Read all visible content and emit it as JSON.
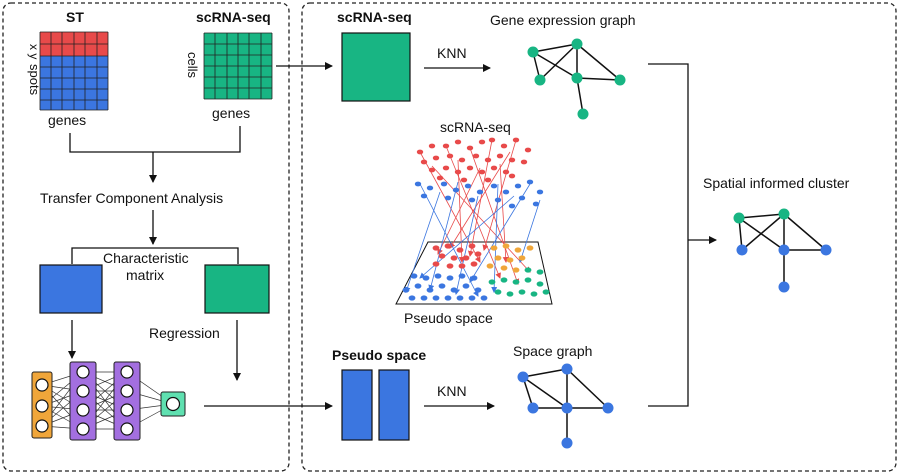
{
  "labels": {
    "st_title": "ST",
    "scrna_title_left": "scRNA-seq",
    "xy_label": "x y",
    "spots_label": "spots",
    "cells_label": "cells",
    "genes_left": "genes",
    "genes_right": "genes",
    "tca": "Transfer Component Analysis",
    "char_line1": "Characteristic",
    "char_line2": "matrix",
    "regression": "Regression",
    "scrna_title_right": "scRNA-seq",
    "gene_expr_graph": "Gene expression graph",
    "knn_top": "KNN",
    "scrna_mid": "scRNA-seq",
    "pseudo_space_small": "Pseudo space",
    "spatial_cluster": "Spatial informed cluster",
    "pseudo_space_bold": "Pseudo space",
    "knn_bottom": "KNN",
    "space_graph": "Space graph"
  },
  "colors": {
    "red": "#e84a4a",
    "blue": "#3b76e0",
    "green": "#18b583",
    "orange": "#f0a63a",
    "purple": "#a36fe0",
    "teal_node": "#5fe0b0"
  }
}
